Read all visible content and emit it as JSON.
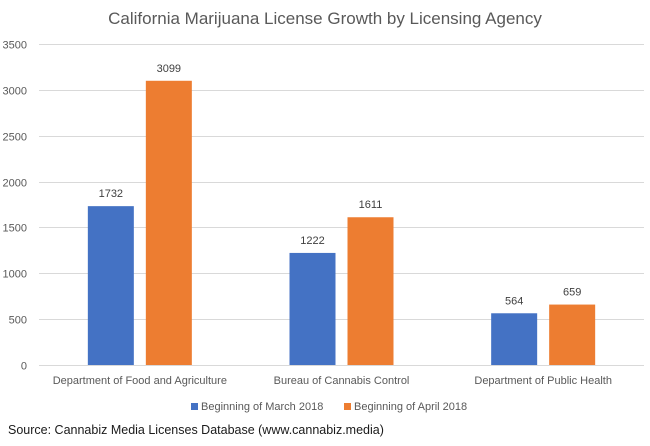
{
  "chart_data": {
    "type": "bar",
    "title": "California Marijuana License Growth by Licensing Agency",
    "xlabel": "",
    "ylabel": "",
    "categories": [
      "Department of Food and Agriculture",
      "Bureau of Cannabis Control",
      "Department of Public Health"
    ],
    "series": [
      {
        "name": "Beginning of March 2018",
        "color": "#4472C4",
        "values": [
          1732,
          1222,
          564
        ]
      },
      {
        "name": "Beginning of April 2018",
        "color": "#ED7D31",
        "values": [
          3099,
          1611,
          659
        ]
      }
    ],
    "ylim": [
      0,
      3500
    ],
    "yticks": [
      0,
      500,
      1000,
      1500,
      2000,
      2500,
      3000,
      3500
    ],
    "grid": true,
    "legend_position": "bottom",
    "data_labels": true
  },
  "source": "Source: Cannabiz Media Licenses Database (www.cannabiz.media)"
}
